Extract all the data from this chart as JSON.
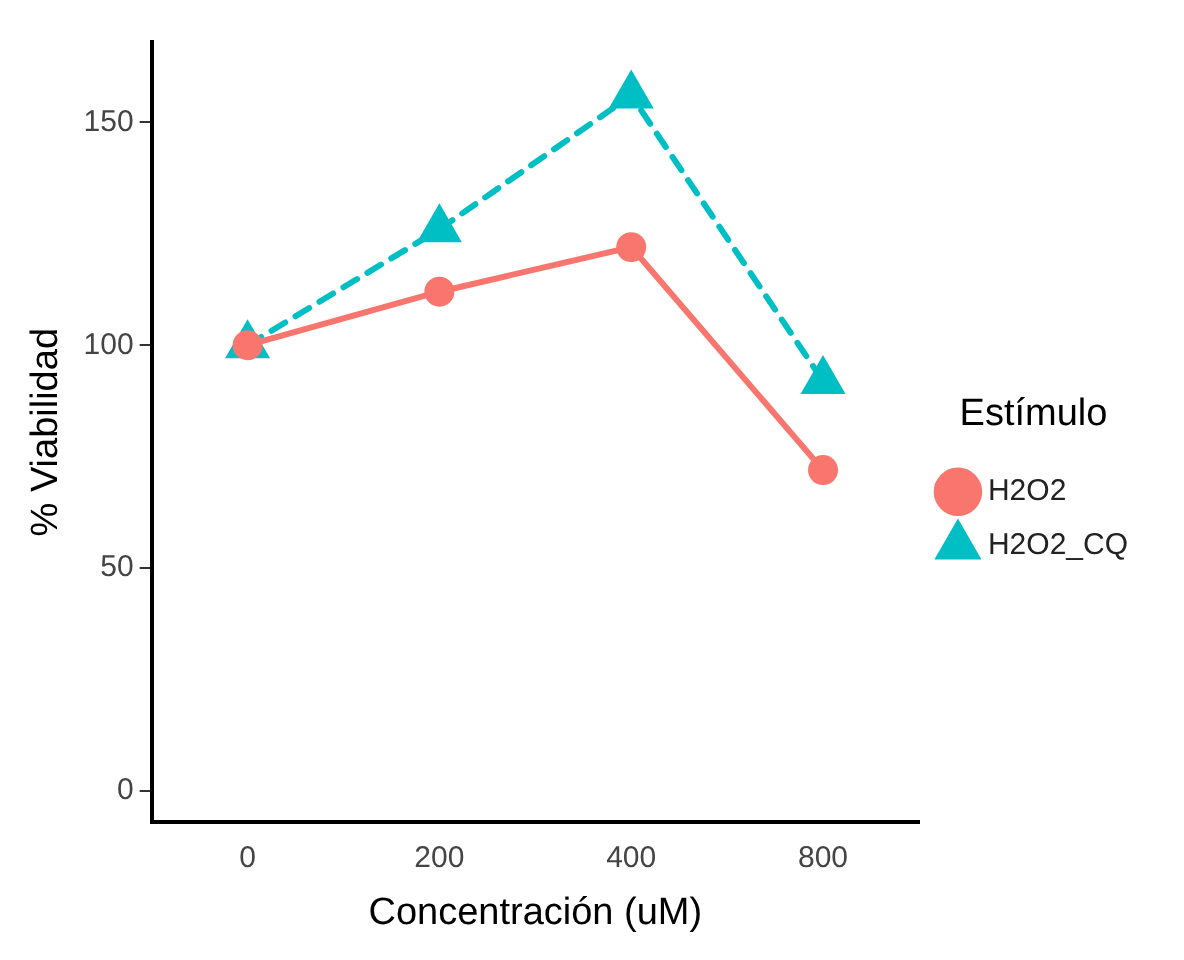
{
  "chart_data": {
    "type": "line",
    "xlabel": "Concentración (uM)",
    "ylabel": "% Viabilidad",
    "legend_title": "Estímulo",
    "categories": [
      "0",
      "200",
      "400",
      "800"
    ],
    "series": [
      {
        "name": "H2O2",
        "color": "#f8766d",
        "values": [
          100,
          112,
          122,
          72
        ],
        "marker": "circle",
        "line_style": "solid"
      },
      {
        "name": "H2O2_CQ",
        "color": "#00bfc4",
        "values": [
          100,
          126,
          156,
          92
        ],
        "marker": "triangle",
        "line_style": "dashed"
      }
    ],
    "ylim": [
      -7,
      168
    ],
    "yticks": [
      0,
      50,
      100,
      150
    ],
    "grid": false,
    "legend": "right"
  }
}
